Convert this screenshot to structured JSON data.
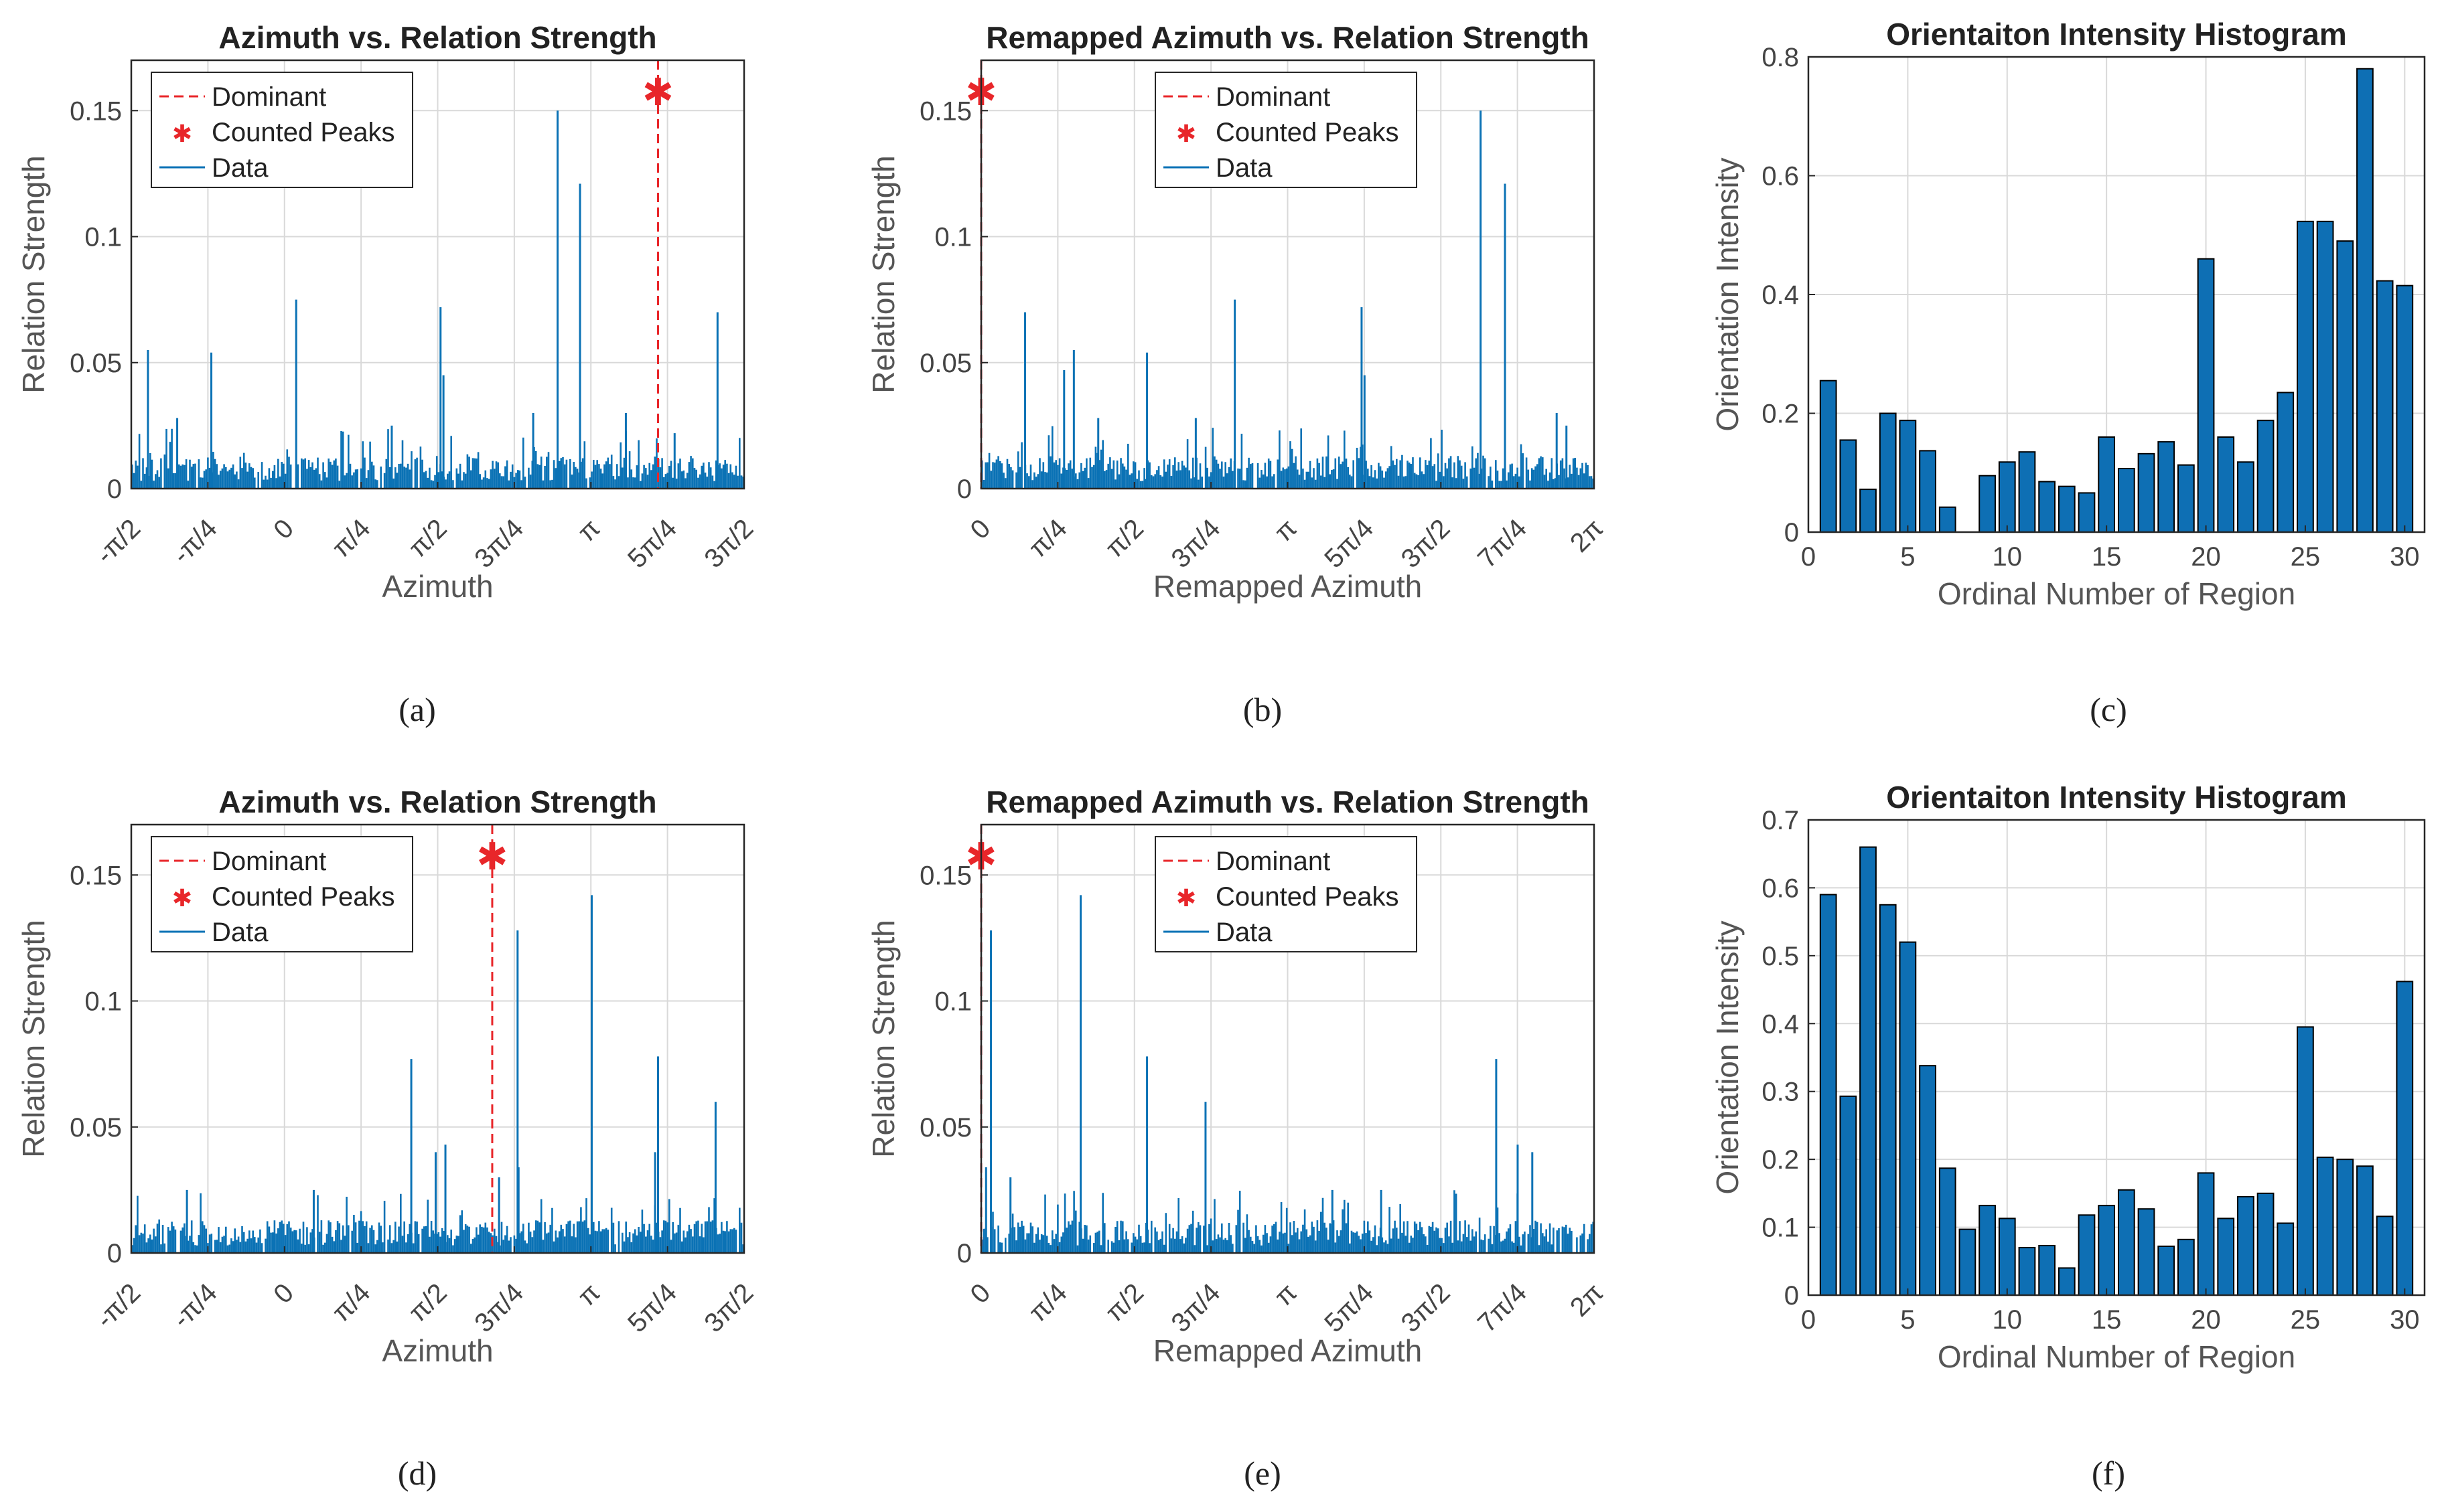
{
  "panels": [
    {
      "caption": "(a)"
    },
    {
      "caption": "(b)"
    },
    {
      "caption": "(c)"
    },
    {
      "caption": "(d)"
    },
    {
      "caption": "(e)"
    },
    {
      "caption": "(f)"
    }
  ],
  "colors": {
    "data": "#0b72b5",
    "dominant": "#e8262a",
    "bar": "#0e6fb4",
    "grid": "#d9d9d9"
  },
  "chart_data": [
    {
      "id": "a",
      "type": "line",
      "title": "Azimuth vs. Relation Strength",
      "xlabel": "Azimuth",
      "ylabel": "Relation Strength",
      "xlim": [
        -1.5708,
        4.7124
      ],
      "ylim": [
        0,
        0.17
      ],
      "xticks": [
        -1.5708,
        -0.7854,
        0,
        0.7854,
        1.5708,
        2.3562,
        3.1416,
        3.927,
        4.7124
      ],
      "xticklabels": [
        "-π/2",
        "-π/4",
        "0",
        "π/4",
        "π/2",
        "3π/4",
        "π",
        "5π/4",
        "3π/2"
      ],
      "yticks": [
        0,
        0.05,
        0.1,
        0.15
      ],
      "yticklabels": [
        "0",
        "0.05",
        "0.1",
        "0.15"
      ],
      "legend": [
        "Dominant",
        "Counted Peaks",
        "Data"
      ],
      "dominant_x": 3.83,
      "peak": {
        "x": 3.83,
        "y": 0.157
      },
      "seed": 11,
      "spikes": [
        [
          -1.4,
          0.055
        ],
        [
          -0.75,
          0.054
        ],
        [
          0.12,
          0.075
        ],
        [
          1.6,
          0.072
        ],
        [
          2.8,
          0.15
        ],
        [
          3.03,
          0.121
        ],
        [
          4.44,
          0.07
        ],
        [
          1.1,
          0.025
        ],
        [
          -1.1,
          0.028
        ],
        [
          3.5,
          0.03
        ],
        [
          2.55,
          0.03
        ],
        [
          4.0,
          0.022
        ],
        [
          1.63,
          0.045
        ]
      ]
    },
    {
      "id": "b",
      "type": "line",
      "title": "Remapped Azimuth vs. Relation Strength",
      "xlabel": "Remapped Azimuth",
      "ylabel": "Relation Strength",
      "xlim": [
        0,
        6.2832
      ],
      "ylim": [
        0,
        0.17
      ],
      "xticks": [
        0,
        0.7854,
        1.5708,
        2.3562,
        3.1416,
        3.927,
        4.7124,
        5.4978,
        6.2832
      ],
      "xticklabels": [
        "0",
        "π/4",
        "π/2",
        "3π/4",
        "π",
        "5π/4",
        "3π/2",
        "7π/4",
        "2π"
      ],
      "yticks": [
        0,
        0.05,
        0.1,
        0.15
      ],
      "yticklabels": [
        "0",
        "0.05",
        "0.1",
        "0.15"
      ],
      "legend": [
        "Dominant",
        "Counted Peaks",
        "Data"
      ],
      "dominant_x": 0,
      "peak": {
        "x": 0,
        "y": 0.157
      },
      "seed": 23,
      "spikes": [
        [
          0.45,
          0.07
        ],
        [
          0.95,
          0.055
        ],
        [
          0.85,
          0.047
        ],
        [
          1.7,
          0.054
        ],
        [
          2.6,
          0.075
        ],
        [
          3.9,
          0.072
        ],
        [
          5.12,
          0.15
        ],
        [
          5.37,
          0.121
        ],
        [
          3.93,
          0.045
        ],
        [
          2.2,
          0.028
        ],
        [
          1.2,
          0.028
        ],
        [
          5.9,
          0.03
        ],
        [
          6.0,
          0.025
        ]
      ]
    },
    {
      "id": "c",
      "type": "bar",
      "title": "Orientaiton Intensity Histogram",
      "xlabel": "Ordinal Number of Region",
      "ylabel": "Orientation Intensity",
      "xlim": [
        0,
        31
      ],
      "ylim": [
        0,
        0.8
      ],
      "xticks": [
        0,
        5,
        10,
        15,
        20,
        25,
        30
      ],
      "xticklabels": [
        "0",
        "5",
        "10",
        "15",
        "20",
        "25",
        "30"
      ],
      "yticks": [
        0,
        0.2,
        0.4,
        0.6,
        0.8
      ],
      "yticklabels": [
        "0",
        "0.2",
        "0.4",
        "0.6",
        "0.8"
      ],
      "categories": [
        1,
        2,
        3,
        4,
        5,
        6,
        7,
        8,
        9,
        10,
        11,
        12,
        13,
        14,
        15,
        16,
        17,
        18,
        19,
        20,
        21,
        22,
        23,
        24,
        25,
        26,
        27,
        28,
        29,
        30
      ],
      "values": [
        0.255,
        0.155,
        0.072,
        0.2,
        0.188,
        0.137,
        0.042,
        0,
        0.095,
        0.118,
        0.135,
        0.085,
        0.077,
        0.066,
        0.16,
        0.107,
        0.132,
        0.152,
        0.113,
        0.46,
        0.16,
        0.118,
        0.188,
        0.235,
        0.523,
        0.523,
        0.49,
        0.78,
        0.423,
        0.415
      ]
    },
    {
      "id": "d",
      "type": "line",
      "title": "Azimuth vs. Relation Strength",
      "xlabel": "Azimuth",
      "ylabel": "Relation Strength",
      "xlim": [
        -1.5708,
        4.7124
      ],
      "ylim": [
        0,
        0.17
      ],
      "xticks": [
        -1.5708,
        -0.7854,
        0,
        0.7854,
        1.5708,
        2.3562,
        3.1416,
        3.927,
        4.7124
      ],
      "xticklabels": [
        "-π/2",
        "-π/4",
        "0",
        "π/4",
        "π/2",
        "3π/4",
        "π",
        "5π/4",
        "3π/2"
      ],
      "yticks": [
        0,
        0.05,
        0.1,
        0.15
      ],
      "yticklabels": [
        "0",
        "0.05",
        "0.1",
        "0.15"
      ],
      "legend": [
        "Dominant",
        "Counted Peaks",
        "Data"
      ],
      "dominant_x": 2.13,
      "peak": {
        "x": 2.13,
        "y": 0.157
      },
      "seed": 37,
      "spikes": [
        [
          1.3,
          0.077
        ],
        [
          2.39,
          0.128
        ],
        [
          3.15,
          0.142
        ],
        [
          3.83,
          0.078
        ],
        [
          4.42,
          0.06
        ],
        [
          1.65,
          0.043
        ],
        [
          1.55,
          0.04
        ],
        [
          -1.0,
          0.025
        ],
        [
          0.3,
          0.025
        ],
        [
          2.4,
          0.034
        ],
        [
          2.2,
          0.03
        ],
        [
          3.8,
          0.04
        ]
      ]
    },
    {
      "id": "e",
      "type": "line",
      "title": "Remapped Azimuth vs. Relation Strength",
      "xlabel": "Remapped Azimuth",
      "ylabel": "Relation Strength",
      "xlim": [
        0,
        6.2832
      ],
      "ylim": [
        0,
        0.17
      ],
      "xticks": [
        0,
        0.7854,
        1.5708,
        2.3562,
        3.1416,
        3.927,
        4.7124,
        5.4978,
        6.2832
      ],
      "xticklabels": [
        "0",
        "π/4",
        "π/2",
        "3π/4",
        "π",
        "5π/4",
        "3π/2",
        "7π/4",
        "2π"
      ],
      "yticks": [
        0,
        0.05,
        0.1,
        0.15
      ],
      "yticklabels": [
        "0",
        "0.05",
        "0.1",
        "0.15"
      ],
      "legend": [
        "Dominant",
        "Counted Peaks",
        "Data"
      ],
      "dominant_x": 0,
      "peak": {
        "x": 0,
        "y": 0.157
      },
      "seed": 53,
      "spikes": [
        [
          0.1,
          0.128
        ],
        [
          1.02,
          0.142
        ],
        [
          1.7,
          0.078
        ],
        [
          2.3,
          0.06
        ],
        [
          5.28,
          0.077
        ],
        [
          5.5,
          0.043
        ],
        [
          5.65,
          0.04
        ],
        [
          0.05,
          0.034
        ],
        [
          3.6,
          0.025
        ],
        [
          4.1,
          0.025
        ],
        [
          0.3,
          0.03
        ]
      ]
    },
    {
      "id": "f",
      "type": "bar",
      "title": "Orientaiton Intensity Histogram",
      "xlabel": "Ordinal Number of Region",
      "ylabel": "Orientation Intensity",
      "xlim": [
        0,
        31
      ],
      "ylim": [
        0,
        0.7
      ],
      "xticks": [
        0,
        5,
        10,
        15,
        20,
        25,
        30
      ],
      "xticklabels": [
        "0",
        "5",
        "10",
        "15",
        "20",
        "25",
        "30"
      ],
      "yticks": [
        0,
        0.1,
        0.2,
        0.3,
        0.4,
        0.5,
        0.6,
        0.7
      ],
      "yticklabels": [
        "0",
        "0.1",
        "0.2",
        "0.3",
        "0.4",
        "0.5",
        "0.6",
        "0.7"
      ],
      "categories": [
        1,
        2,
        3,
        4,
        5,
        6,
        7,
        8,
        9,
        10,
        11,
        12,
        13,
        14,
        15,
        16,
        17,
        18,
        19,
        20,
        21,
        22,
        23,
        24,
        25,
        26,
        27,
        28,
        29,
        30
      ],
      "values": [
        0.59,
        0.293,
        0.66,
        0.575,
        0.52,
        0.338,
        0.187,
        0.097,
        0.132,
        0.113,
        0.07,
        0.073,
        0.04,
        0.118,
        0.132,
        0.155,
        0.127,
        0.072,
        0.082,
        0.18,
        0.113,
        0.145,
        0.15,
        0.106,
        0.395,
        0.203,
        0.2,
        0.19,
        0.116,
        0.462
      ]
    }
  ]
}
